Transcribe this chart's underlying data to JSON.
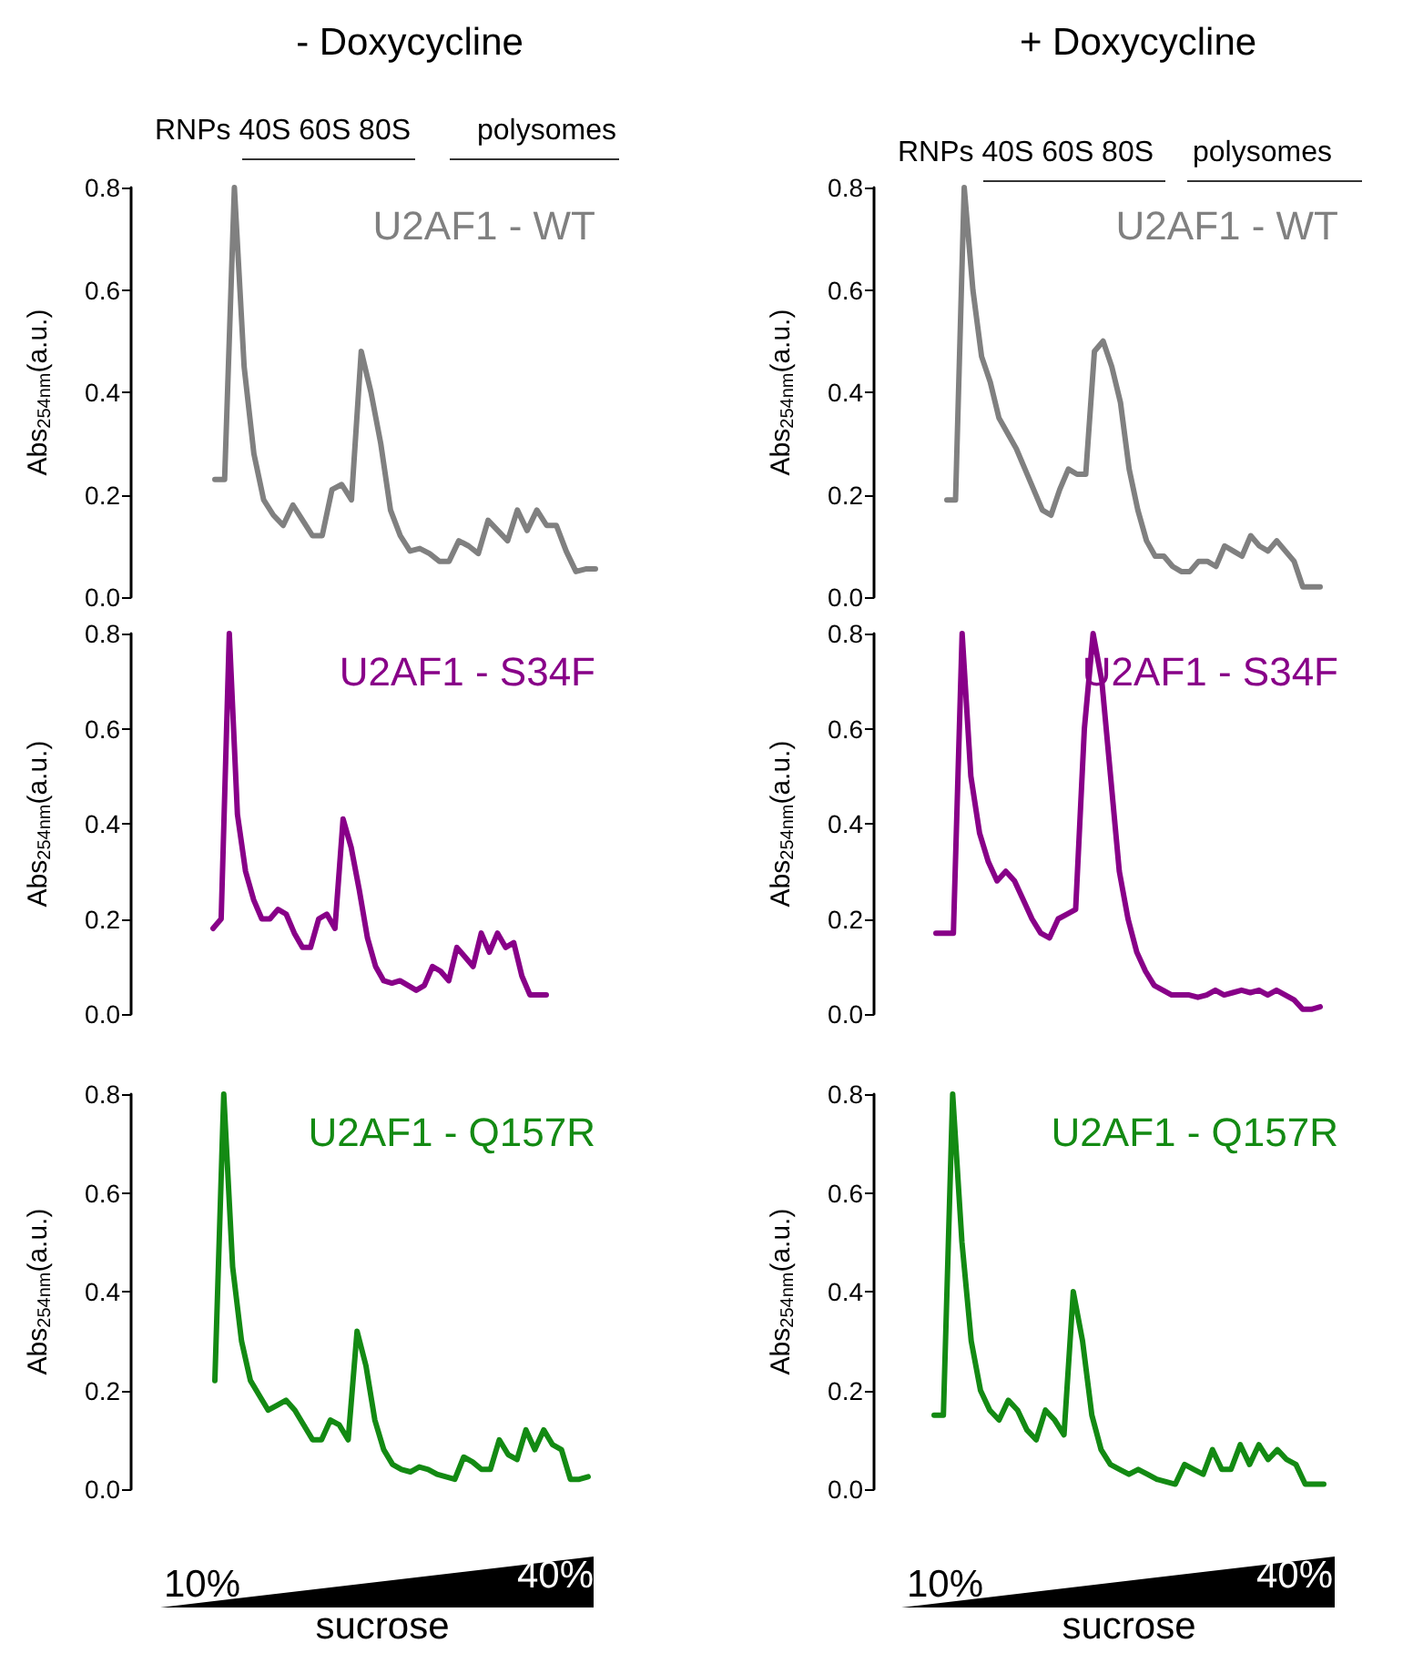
{
  "chart_data": [
    {
      "type": "line",
      "title": "- Doxycycline",
      "ylabel": "Abs$_{254nm}$(a.u.)",
      "annotations": [
        "RNPs 40S 60S 80S",
        "polysomes"
      ],
      "ylim": [
        0,
        0.8
      ],
      "yticks": [
        {
          "value": 0,
          "label": "0.0"
        },
        {
          "value": 0.2,
          "label": "0.2"
        },
        {
          "value": 0.4,
          "label": "0.4"
        },
        {
          "value": 0.6,
          "label": "0.6"
        },
        {
          "value": 0.8,
          "label": "0.8"
        }
      ],
      "grid": false,
      "legend": false,
      "tick_labels": "y",
      "line_style": "solid",
      "categories": [
        null,
        null,
        null,
        null,
        null,
        null,
        null,
        null,
        null,
        null,
        null,
        null,
        null,
        null,
        null,
        null,
        null,
        null,
        null,
        null,
        null,
        null,
        null,
        null,
        null,
        null,
        null,
        null,
        null,
        null,
        null,
        null,
        null,
        null,
        null,
        null,
        null,
        null,
        null,
        null
      ],
      "series": [
        {
          "name": "U2AF1 - WT",
          "color": "#808080",
          "values": [
            0.23,
            0.23,
            0.8,
            0.45,
            0.28,
            0.19,
            0.16,
            0.14,
            0.18,
            0.15,
            0.12,
            0.12,
            0.21,
            0.22,
            0.19,
            0.48,
            0.4,
            0.3,
            0.17,
            0.12,
            0.09,
            0.095,
            0.085,
            0.07,
            0.07,
            0.11,
            0.1,
            0.085,
            0.15,
            0.13,
            0.11,
            0.17,
            0.13,
            0.17,
            0.14,
            0.14,
            0.09,
            0.05,
            0.055,
            0.055
          ]
        }
      ]
    },
    {
      "type": "line",
      "title": "+ Doxycycline",
      "ylabel": "Abs$_{254nm}$(a.u.)",
      "annotations": [
        "RNPs 40S 60S 80S",
        "polysomes"
      ],
      "ylim": [
        0,
        0.8
      ],
      "yticks": [
        {
          "value": 0,
          "label": "0.0"
        },
        {
          "value": 0.2,
          "label": "0.2"
        },
        {
          "value": 0.4,
          "label": "0.4"
        },
        {
          "value": 0.6,
          "label": "0.6"
        },
        {
          "value": 0.8,
          "label": "0.8"
        }
      ],
      "grid": false,
      "legend": false,
      "tick_labels": "y",
      "line_style": "solid",
      "categories": [
        null,
        null,
        null,
        null,
        null,
        null,
        null,
        null,
        null,
        null,
        null,
        null,
        null,
        null,
        null,
        null,
        null,
        null,
        null,
        null,
        null,
        null,
        null,
        null,
        null,
        null,
        null,
        null,
        null,
        null,
        null,
        null,
        null,
        null,
        null,
        null,
        null,
        null,
        null,
        null,
        null,
        null,
        null,
        null
      ],
      "series": [
        {
          "name": "U2AF1 - WT",
          "color": "#808080",
          "values": [
            0.19,
            0.19,
            0.8,
            0.6,
            0.47,
            0.42,
            0.35,
            0.32,
            0.29,
            0.25,
            0.21,
            0.17,
            0.16,
            0.21,
            0.25,
            0.24,
            0.24,
            0.48,
            0.5,
            0.45,
            0.38,
            0.25,
            0.17,
            0.11,
            0.08,
            0.08,
            0.06,
            0.05,
            0.05,
            0.07,
            0.07,
            0.06,
            0.1,
            0.09,
            0.08,
            0.12,
            0.1,
            0.09,
            0.11,
            0.09,
            0.07,
            0.02,
            0.02,
            0.02
          ]
        }
      ]
    },
    {
      "type": "line",
      "ylabel": "Abs$_{254nm}$(a.u.)",
      "ylim": [
        0,
        0.8
      ],
      "yticks": [
        {
          "value": 0,
          "label": "0.0"
        },
        {
          "value": 0.2,
          "label": "0.2"
        },
        {
          "value": 0.4,
          "label": "0.4"
        },
        {
          "value": 0.6,
          "label": "0.6"
        },
        {
          "value": 0.8,
          "label": "0.8"
        }
      ],
      "grid": false,
      "legend": false,
      "tick_labels": "y",
      "line_style": "solid",
      "categories": [
        null,
        null,
        null,
        null,
        null,
        null,
        null,
        null,
        null,
        null,
        null,
        null,
        null,
        null,
        null,
        null,
        null,
        null,
        null,
        null,
        null,
        null,
        null,
        null,
        null,
        null,
        null,
        null,
        null,
        null,
        null,
        null,
        null,
        null,
        null,
        null,
        null,
        null,
        null,
        null,
        null,
        null
      ],
      "series": [
        {
          "name": "U2AF1 - S34F",
          "color": "#880088",
          "values": [
            0.18,
            0.2,
            0.8,
            0.42,
            0.3,
            0.24,
            0.2,
            0.2,
            0.22,
            0.21,
            0.17,
            0.14,
            0.14,
            0.2,
            0.21,
            0.18,
            0.41,
            0.35,
            0.26,
            0.16,
            0.1,
            0.07,
            0.065,
            0.07,
            0.06,
            0.05,
            0.06,
            0.1,
            0.09,
            0.07,
            0.14,
            0.12,
            0.1,
            0.17,
            0.13,
            0.17,
            0.14,
            0.15,
            0.08,
            0.04,
            0.04,
            0.04
          ]
        }
      ]
    },
    {
      "type": "line",
      "ylabel": "Abs$_{254nm}$(a.u.)",
      "ylim": [
        0,
        0.8
      ],
      "yticks": [
        {
          "value": 0,
          "label": "0.0"
        },
        {
          "value": 0.2,
          "label": "0.2"
        },
        {
          "value": 0.4,
          "label": "0.4"
        },
        {
          "value": 0.6,
          "label": "0.6"
        },
        {
          "value": 0.8,
          "label": "0.8"
        }
      ],
      "grid": false,
      "legend": false,
      "tick_labels": "y",
      "line_style": "solid",
      "categories": [
        null,
        null,
        null,
        null,
        null,
        null,
        null,
        null,
        null,
        null,
        null,
        null,
        null,
        null,
        null,
        null,
        null,
        null,
        null,
        null,
        null,
        null,
        null,
        null,
        null,
        null,
        null,
        null,
        null,
        null,
        null,
        null,
        null,
        null,
        null,
        null,
        null,
        null,
        null,
        null,
        null,
        null,
        null,
        null,
        null
      ],
      "series": [
        {
          "name": "U2AF1 - S34F",
          "color": "#880088",
          "values": [
            0.17,
            0.17,
            0.17,
            0.8,
            0.5,
            0.38,
            0.32,
            0.28,
            0.3,
            0.28,
            0.24,
            0.2,
            0.17,
            0.16,
            0.2,
            0.21,
            0.22,
            0.6,
            0.8,
            0.7,
            0.5,
            0.3,
            0.2,
            0.13,
            0.09,
            0.06,
            0.05,
            0.04,
            0.04,
            0.04,
            0.035,
            0.04,
            0.05,
            0.04,
            0.045,
            0.05,
            0.045,
            0.05,
            0.04,
            0.05,
            0.04,
            0.03,
            0.01,
            0.01,
            0.015
          ]
        }
      ]
    },
    {
      "type": "line",
      "ylabel": "Abs$_{254nm}$(a.u.)",
      "annotations": [
        "10%",
        "40%",
        "sucrose"
      ],
      "ylim": [
        0,
        0.8
      ],
      "yticks": [
        {
          "value": 0,
          "label": "0.0"
        },
        {
          "value": 0.2,
          "label": "0.2"
        },
        {
          "value": 0.4,
          "label": "0.4"
        },
        {
          "value": 0.6,
          "label": "0.6"
        },
        {
          "value": 0.8,
          "label": "0.8"
        }
      ],
      "grid": false,
      "legend": false,
      "tick_labels": "y",
      "line_style": "solid",
      "categories": [
        null,
        null,
        null,
        null,
        null,
        null,
        null,
        null,
        null,
        null,
        null,
        null,
        null,
        null,
        null,
        null,
        null,
        null,
        null,
        null,
        null,
        null,
        null,
        null,
        null,
        null,
        null,
        null,
        null,
        null,
        null,
        null,
        null,
        null,
        null,
        null,
        null,
        null,
        null,
        null,
        null,
        null,
        null
      ],
      "series": [
        {
          "name": "U2AF1 - Q157R",
          "color": "#138a13",
          "values": [
            0.22,
            0.8,
            0.45,
            0.3,
            0.22,
            0.19,
            0.16,
            0.17,
            0.18,
            0.16,
            0.13,
            0.1,
            0.1,
            0.14,
            0.13,
            0.1,
            0.32,
            0.25,
            0.14,
            0.08,
            0.05,
            0.04,
            0.035,
            0.045,
            0.04,
            0.03,
            0.025,
            0.02,
            0.065,
            0.055,
            0.04,
            0.04,
            0.1,
            0.07,
            0.06,
            0.12,
            0.08,
            0.12,
            0.09,
            0.08,
            0.02,
            0.02,
            0.025
          ]
        }
      ]
    },
    {
      "type": "line",
      "ylabel": "Abs$_{254nm}$(a.u.)",
      "annotations": [
        "10%",
        "40%",
        "sucrose"
      ],
      "ylim": [
        0,
        0.8
      ],
      "yticks": [
        {
          "value": 0,
          "label": "0.0"
        },
        {
          "value": 0.2,
          "label": "0.2"
        },
        {
          "value": 0.4,
          "label": "0.4"
        },
        {
          "value": 0.6,
          "label": "0.6"
        },
        {
          "value": 0.8,
          "label": "0.8"
        }
      ],
      "grid": false,
      "legend": false,
      "tick_labels": "y",
      "line_style": "solid",
      "categories": [
        null,
        null,
        null,
        null,
        null,
        null,
        null,
        null,
        null,
        null,
        null,
        null,
        null,
        null,
        null,
        null,
        null,
        null,
        null,
        null,
        null,
        null,
        null,
        null,
        null,
        null,
        null,
        null,
        null,
        null,
        null,
        null,
        null,
        null,
        null,
        null,
        null,
        null,
        null,
        null,
        null,
        null,
        null
      ],
      "series": [
        {
          "name": "U2AF1 - Q157R",
          "color": "#138a13",
          "values": [
            0.15,
            0.15,
            0.8,
            0.5,
            0.3,
            0.2,
            0.16,
            0.14,
            0.18,
            0.16,
            0.12,
            0.1,
            0.16,
            0.14,
            0.11,
            0.4,
            0.3,
            0.15,
            0.08,
            0.05,
            0.04,
            0.03,
            0.04,
            0.03,
            0.02,
            0.015,
            0.01,
            0.05,
            0.04,
            0.03,
            0.08,
            0.04,
            0.04,
            0.09,
            0.05,
            0.09,
            0.06,
            0.08,
            0.06,
            0.05,
            0.01,
            0.01,
            0.01
          ]
        }
      ]
    }
  ]
}
